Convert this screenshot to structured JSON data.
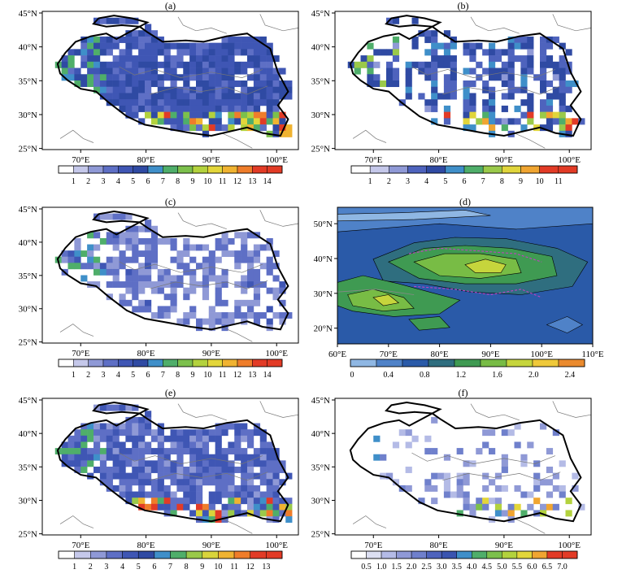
{
  "panels": [
    {
      "id": "a",
      "label": "(a)",
      "kind": "grid",
      "lat_ticks": [
        "45°N",
        "40°N",
        "35°N",
        "30°N",
        "25°N"
      ],
      "lon_ticks": [
        "70°E",
        "80°E",
        "90°E",
        "100°E"
      ],
      "colorbar_labels": [
        "1",
        "2",
        "3",
        "4",
        "5",
        "6",
        "7",
        "8",
        "9",
        "10",
        "11",
        "12",
        "13",
        "14"
      ],
      "palette": [
        "#ffffff",
        "#c5c8ea",
        "#8f99d6",
        "#5e6fc5",
        "#3f56b4",
        "#2f4aa3",
        "#3f8fc9",
        "#4fae6a",
        "#7cc04c",
        "#b3d23d",
        "#e3d63a",
        "#f0b331",
        "#ef7d2a",
        "#e23b26"
      ],
      "seed": 11,
      "density": 0.93,
      "mean_index": 4.1,
      "spread": 1.3,
      "hot_edge": true,
      "sparse": false
    },
    {
      "id": "b",
      "label": "(b)",
      "kind": "grid",
      "lat_ticks": [
        "45°N",
        "40°N",
        "35°N",
        "30°N",
        "25°N"
      ],
      "lon_ticks": [
        "70°E",
        "80°E",
        "90°E",
        "100°E"
      ],
      "colorbar_labels": [
        "1",
        "2",
        "3",
        "4",
        "5",
        "6",
        "7",
        "8",
        "9",
        "10",
        "11"
      ],
      "palette": [
        "#ffffff",
        "#c5c8ea",
        "#8f99d6",
        "#4e63bd",
        "#2f4aa3",
        "#3f8fc9",
        "#4fae6a",
        "#9ac94a",
        "#e0d53b",
        "#f0a531",
        "#e23b26"
      ],
      "seed": 23,
      "density": 0.7,
      "mean_index": 3.6,
      "spread": 1.2,
      "hot_edge": true,
      "sparse": false,
      "striped": true
    },
    {
      "id": "c",
      "label": "(c)",
      "kind": "grid",
      "lat_ticks": [
        "45°N",
        "40°N",
        "35°N",
        "30°N",
        "25°N"
      ],
      "lon_ticks": [
        "70°E",
        "80°E",
        "90°E",
        "100°E"
      ],
      "colorbar_labels": [
        "1",
        "2",
        "3",
        "4",
        "5",
        "6",
        "7",
        "8",
        "9",
        "10",
        "11",
        "12",
        "13",
        "14"
      ],
      "palette": [
        "#ffffff",
        "#c5c8ea",
        "#8f99d6",
        "#5e6fc5",
        "#3f56b4",
        "#2f4aa3",
        "#3f8fc9",
        "#4fae6a",
        "#7cc04c",
        "#b3d23d",
        "#e3d63a",
        "#f0b331",
        "#ef7d2a",
        "#e23b26"
      ],
      "seed": 37,
      "density": 0.62,
      "mean_index": 2.6,
      "spread": 1.0,
      "hot_edge": false,
      "sparse": false
    },
    {
      "id": "d",
      "label": "(d)",
      "kind": "contour",
      "lat_ticks": [
        "50°N",
        "40°N",
        "30°N",
        "20°N"
      ],
      "lon_ticks": [
        "60°E",
        "70°E",
        "80°E",
        "90°E",
        "100°E",
        "110°E"
      ],
      "colorbar_labels": [
        "0",
        "0.4",
        "0.8",
        "1.2",
        "1.6",
        "2.0",
        "2.4"
      ],
      "palette": [
        "#8fb7e3",
        "#4f82c8",
        "#2a5aa8",
        "#2f6e7f",
        "#3f9a52",
        "#78bc45",
        "#c6d53c",
        "#efc93a",
        "#ea8a2e"
      ]
    },
    {
      "id": "e",
      "label": "(e)",
      "kind": "grid",
      "lat_ticks": [
        "45°N",
        "40°N",
        "35°N",
        "30°N",
        "25°N"
      ],
      "lon_ticks": [
        "70°E",
        "80°E",
        "90°E",
        "100°E"
      ],
      "colorbar_labels": [
        "1",
        "2",
        "3",
        "4",
        "5",
        "6",
        "7",
        "8",
        "9",
        "10",
        "11",
        "12",
        "13"
      ],
      "palette": [
        "#ffffff",
        "#c5c8ea",
        "#8f99d6",
        "#5e6fc5",
        "#3f56b4",
        "#2f4aa3",
        "#3f8fc9",
        "#4fae6a",
        "#9ac94a",
        "#d9d43b",
        "#f0b331",
        "#ef7d2a",
        "#e23b26"
      ],
      "seed": 53,
      "density": 0.86,
      "mean_index": 3.4,
      "spread": 1.1,
      "hot_edge": true,
      "sparse": false
    },
    {
      "id": "f",
      "label": "(f)",
      "kind": "grid",
      "lat_ticks": [
        "45°N",
        "40°N",
        "35°N",
        "30°N",
        "25°N"
      ],
      "lon_ticks": [
        "70°E",
        "80°E",
        "90°E",
        "100°E"
      ],
      "colorbar_labels": [
        "0.5",
        "1.0",
        "1.5",
        "2.0",
        "2.5",
        "3.0",
        "3.5",
        "4.0",
        "4.5",
        "5.0",
        "5.5",
        "6.0",
        "6.5",
        "7.0"
      ],
      "palette": [
        "#ffffff",
        "#dcdff2",
        "#b4bbe6",
        "#8f99d6",
        "#6f80cc",
        "#4e63bd",
        "#3a54b0",
        "#3f8fc9",
        "#4fae6a",
        "#7cc04c",
        "#b3d23d",
        "#e3d63a",
        "#f0a531",
        "#e23b26"
      ],
      "seed": 71,
      "density": 0.42,
      "mean_index": 3.0,
      "spread": 1.3,
      "hot_edge": true,
      "sparse": true
    }
  ]
}
